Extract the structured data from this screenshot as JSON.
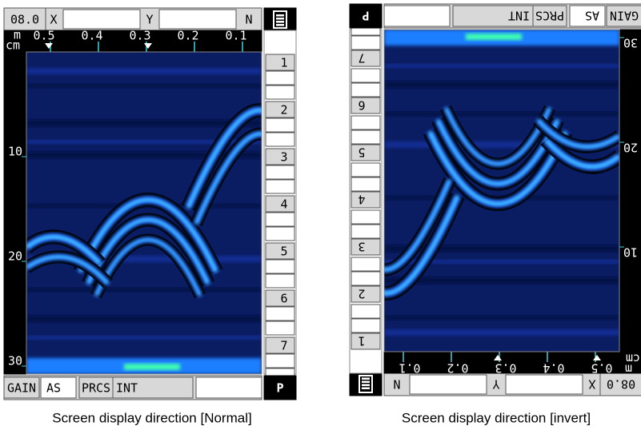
{
  "panels": [
    {
      "caption": "Screen display direction [Normal]",
      "range": "08.0",
      "x_label": "X",
      "y_label": "Y",
      "n_label": "N",
      "distance_unit": "m",
      "depth_unit": "cm",
      "distance_ticks": [
        "0.5",
        "0.4",
        "0.3",
        "0.2",
        "0.1"
      ],
      "depth_ticks": [
        "10",
        "20",
        "30"
      ],
      "channels": [
        "1",
        "2",
        "3",
        "4",
        "5",
        "6",
        "7"
      ],
      "gain": "GAIN",
      "gain_mode": "AS",
      "prcs": "PRCS",
      "prcs_mode": "INT",
      "p_label": "P"
    },
    {
      "caption": "Screen display direction [invert]",
      "range": "08.0",
      "x_label": "X",
      "y_label": "Y",
      "n_label": "N",
      "distance_unit": "m",
      "depth_unit": "cm",
      "distance_ticks": [
        "0.5",
        "0.4",
        "0.3",
        "0.2",
        "0.1"
      ],
      "depth_ticks": [
        "10",
        "20",
        "30"
      ],
      "channels": [
        "1",
        "2",
        "3",
        "4",
        "5",
        "6",
        "7"
      ],
      "gain": "GAIN",
      "gain_mode": "AS",
      "prcs": "PRCS",
      "prcs_mode": "INT",
      "p_label": "P"
    }
  ]
}
